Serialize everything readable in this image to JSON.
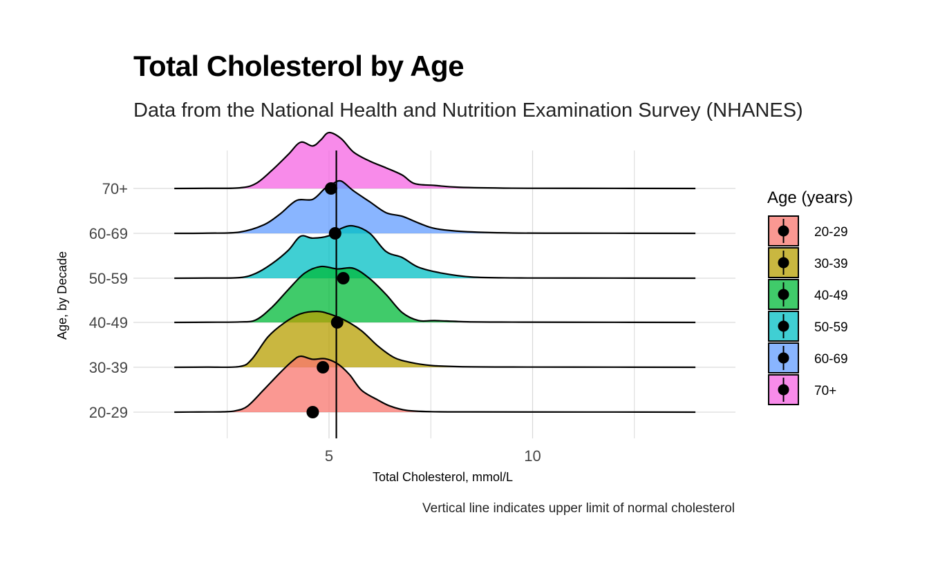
{
  "chart_data": {
    "type": "ridgeline",
    "title": "Total Cholesterol by Age",
    "subtitle": "Data from the National Health and Nutrition Examination Survey (NHANES)",
    "caption": "Vertical line indicates upper limit of normal cholesterol",
    "xlabel": "Total Cholesterol, mmol/L",
    "ylabel": "Age, by Decade",
    "xlim": [
      0.5,
      14.5
    ],
    "x_ticks": [
      5,
      10
    ],
    "grid": true,
    "reference_line": {
      "x": 5.18,
      "label": "upper limit of normal cholesterol"
    },
    "legend": {
      "title": "Age (years)",
      "placement": "right"
    },
    "series": [
      {
        "name": "20-29",
        "color": "#F8766D",
        "median": 4.6,
        "x_range": [
          1.2,
          14.0
        ],
        "density": [
          [
            1.2,
            0
          ],
          [
            1.8,
            0.003
          ],
          [
            2.4,
            0.006
          ],
          [
            2.7,
            0.022
          ],
          [
            3.0,
            0.1
          ],
          [
            3.4,
            0.37
          ],
          [
            3.8,
            0.65
          ],
          [
            4.1,
            0.84
          ],
          [
            4.3,
            0.92
          ],
          [
            4.6,
            0.87
          ],
          [
            4.9,
            0.88
          ],
          [
            5.2,
            0.8
          ],
          [
            5.5,
            0.62
          ],
          [
            5.8,
            0.36
          ],
          [
            6.2,
            0.2
          ],
          [
            6.5,
            0.1
          ],
          [
            6.9,
            0.03
          ],
          [
            7.5,
            0.008
          ],
          [
            8.5,
            0.004
          ],
          [
            10,
            0.003
          ],
          [
            12,
            0.002
          ],
          [
            14,
            0
          ]
        ]
      },
      {
        "name": "30-39",
        "color": "#B79F00",
        "median": 4.85,
        "x_range": [
          1.2,
          14.0
        ],
        "density": [
          [
            1.2,
            0
          ],
          [
            2.0,
            0.003
          ],
          [
            2.8,
            0.012
          ],
          [
            3.1,
            0.13
          ],
          [
            3.5,
            0.5
          ],
          [
            3.9,
            0.73
          ],
          [
            4.3,
            0.88
          ],
          [
            4.7,
            0.92
          ],
          [
            5.0,
            0.88
          ],
          [
            5.4,
            0.77
          ],
          [
            5.8,
            0.6
          ],
          [
            6.2,
            0.35
          ],
          [
            6.6,
            0.16
          ],
          [
            7.0,
            0.08
          ],
          [
            7.5,
            0.03
          ],
          [
            8.2,
            0.01
          ],
          [
            9.5,
            0.004
          ],
          [
            11,
            0.003
          ],
          [
            14,
            0
          ]
        ]
      },
      {
        "name": "40-49",
        "color": "#00BA38",
        "median": 5.2,
        "x_range": [
          1.2,
          14.0
        ],
        "density": [
          [
            1.2,
            0
          ],
          [
            2.0,
            0.003
          ],
          [
            2.8,
            0.008
          ],
          [
            3.2,
            0.04
          ],
          [
            3.6,
            0.25
          ],
          [
            4.0,
            0.54
          ],
          [
            4.4,
            0.81
          ],
          [
            4.8,
            0.92
          ],
          [
            5.2,
            0.88
          ],
          [
            5.6,
            0.89
          ],
          [
            6.0,
            0.72
          ],
          [
            6.4,
            0.46
          ],
          [
            6.8,
            0.16
          ],
          [
            7.2,
            0.03
          ],
          [
            7.6,
            0.03
          ],
          [
            8.4,
            0.01
          ],
          [
            9.5,
            0.005
          ],
          [
            11,
            0.003
          ],
          [
            14,
            0
          ]
        ]
      },
      {
        "name": "50-59",
        "color": "#00BFC4",
        "median": 5.35,
        "x_range": [
          1.2,
          14.0
        ],
        "density": [
          [
            1.2,
            0
          ],
          [
            2.0,
            0.003
          ],
          [
            2.8,
            0.01
          ],
          [
            3.2,
            0.08
          ],
          [
            3.6,
            0.24
          ],
          [
            4.0,
            0.46
          ],
          [
            4.3,
            0.69
          ],
          [
            4.6,
            0.66
          ],
          [
            5.0,
            0.7
          ],
          [
            5.3,
            0.82
          ],
          [
            5.6,
            0.86
          ],
          [
            6.0,
            0.74
          ],
          [
            6.4,
            0.44
          ],
          [
            6.8,
            0.34
          ],
          [
            7.2,
            0.18
          ],
          [
            7.8,
            0.08
          ],
          [
            8.5,
            0.02
          ],
          [
            9.5,
            0.005
          ],
          [
            11,
            0.003
          ],
          [
            14,
            0
          ]
        ]
      },
      {
        "name": "60-69",
        "color": "#619CFF",
        "median": 5.15,
        "x_range": [
          1.2,
          14.0
        ],
        "density": [
          [
            1.2,
            0
          ],
          [
            2.0,
            0.003
          ],
          [
            2.8,
            0.02
          ],
          [
            3.4,
            0.14
          ],
          [
            3.8,
            0.32
          ],
          [
            4.2,
            0.54
          ],
          [
            4.6,
            0.56
          ],
          [
            4.9,
            0.74
          ],
          [
            5.1,
            0.82
          ],
          [
            5.3,
            0.86
          ],
          [
            5.6,
            0.7
          ],
          [
            6.0,
            0.52
          ],
          [
            6.4,
            0.34
          ],
          [
            6.8,
            0.28
          ],
          [
            7.2,
            0.17
          ],
          [
            7.6,
            0.08
          ],
          [
            8.3,
            0.03
          ],
          [
            9.5,
            0.006
          ],
          [
            11,
            0.003
          ],
          [
            14,
            0
          ]
        ]
      },
      {
        "name": "70+",
        "color": "#F564E3",
        "median": 5.05,
        "x_range": [
          1.2,
          14.0
        ],
        "density": [
          [
            1.2,
            0
          ],
          [
            2.0,
            0.003
          ],
          [
            2.8,
            0.01
          ],
          [
            3.2,
            0.08
          ],
          [
            3.6,
            0.3
          ],
          [
            4.0,
            0.56
          ],
          [
            4.3,
            0.76
          ],
          [
            4.6,
            0.7
          ],
          [
            4.8,
            0.8
          ],
          [
            5.0,
            0.92
          ],
          [
            5.3,
            0.82
          ],
          [
            5.6,
            0.6
          ],
          [
            6.0,
            0.45
          ],
          [
            6.4,
            0.34
          ],
          [
            6.8,
            0.22
          ],
          [
            7.1,
            0.08
          ],
          [
            7.6,
            0.05
          ],
          [
            8.2,
            0.02
          ],
          [
            9.5,
            0.005
          ],
          [
            11,
            0.003
          ],
          [
            14,
            0
          ]
        ]
      }
    ]
  }
}
